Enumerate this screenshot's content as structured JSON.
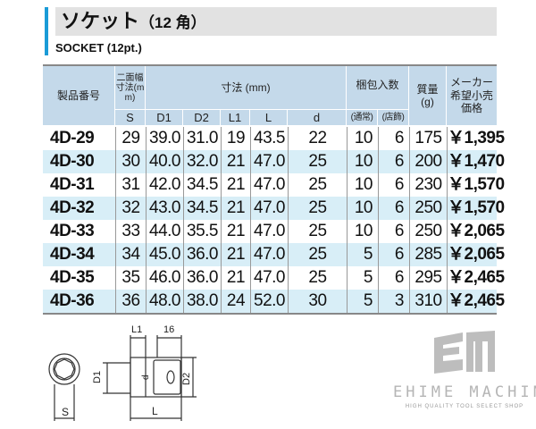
{
  "title": {
    "main": "ソケット",
    "sub": "（12 角）"
  },
  "subtitle": "SOCKET (12pt.)",
  "table": {
    "headers": {
      "part_no": "製品番号",
      "width_across": "二面幅寸法(mm)",
      "dimensions": "寸法 (mm)",
      "pack_qty": "梱包入数",
      "weight": "質量(g)",
      "price": "メーカー希望小売価格"
    },
    "subheaders": {
      "S": "S",
      "D1": "D1",
      "D2": "D2",
      "L1": "L1",
      "L": "L",
      "d": "d",
      "normal": "(通常)",
      "store": "(店飾)"
    },
    "rows": [
      [
        "4D-29",
        "29",
        "39.0",
        "31.0",
        "19",
        "43.5",
        "22",
        "10",
        "6",
        "175",
        "￥1,395"
      ],
      [
        "4D-30",
        "30",
        "40.0",
        "32.0",
        "21",
        "47.0",
        "25",
        "10",
        "6",
        "200",
        "￥1,470"
      ],
      [
        "4D-31",
        "31",
        "42.0",
        "34.5",
        "21",
        "47.0",
        "25",
        "10",
        "6",
        "230",
        "￥1,570"
      ],
      [
        "4D-32",
        "32",
        "43.0",
        "34.5",
        "21",
        "47.0",
        "25",
        "10",
        "6",
        "250",
        "￥1,570"
      ],
      [
        "4D-33",
        "33",
        "44.0",
        "35.5",
        "21",
        "47.0",
        "25",
        "10",
        "6",
        "250",
        "￥2,065"
      ],
      [
        "4D-34",
        "34",
        "45.0",
        "36.0",
        "21",
        "47.0",
        "25",
        "5",
        "6",
        "285",
        "￥2,065"
      ],
      [
        "4D-35",
        "35",
        "46.0",
        "36.0",
        "21",
        "47.0",
        "25",
        "5",
        "6",
        "295",
        "￥2,465"
      ],
      [
        "4D-36",
        "36",
        "48.0",
        "38.0",
        "24",
        "52.0",
        "30",
        "5",
        "3",
        "310",
        "￥2,465"
      ]
    ]
  },
  "diagram": {
    "S": "S",
    "D1": "D1",
    "D2": "D2",
    "L1": "L1",
    "L": "L",
    "d": "d",
    "drive": "16"
  },
  "logo": {
    "name": "EHIME MACHINE",
    "tagline": "HIGH QUALITY TOOL SELECT SHOP"
  },
  "colors": {
    "accent": "#1a9bd7",
    "header_bg": "#c4d9ea",
    "stripe": "#d8eef7"
  }
}
